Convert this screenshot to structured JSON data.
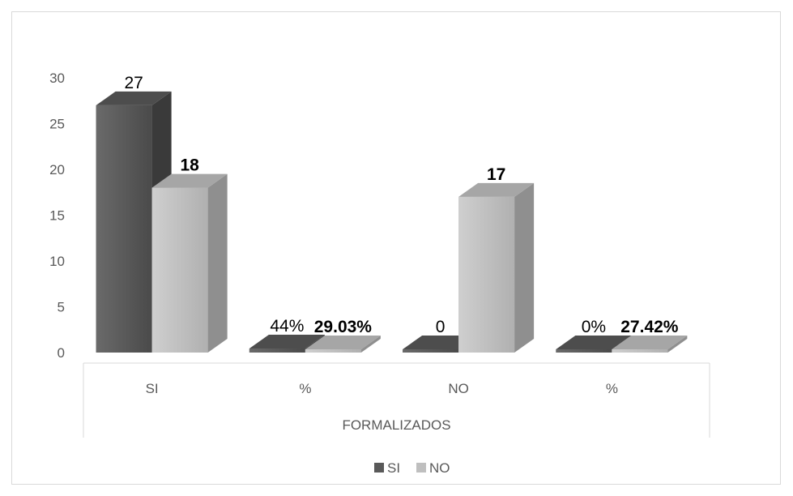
{
  "chart_data": {
    "type": "bar",
    "style": "3d-clustered-column",
    "title": "",
    "xlabel": "",
    "ylabel": "",
    "ylim": [
      0,
      30
    ],
    "yticks": [
      0,
      5,
      10,
      15,
      20,
      25,
      30
    ],
    "categories": [
      "SI",
      "%",
      "NO",
      "%"
    ],
    "group_label": "FORMALIZADOS",
    "series": [
      {
        "name": "SI",
        "color": "#595959",
        "values": [
          27,
          0.44,
          0,
          0
        ],
        "labels": [
          "27",
          "44%",
          "0",
          "0%"
        ],
        "label_bold": false
      },
      {
        "name": "NO",
        "color": "#bfbfbf",
        "values": [
          18,
          0.2903,
          17,
          0.2742
        ],
        "labels": [
          "18",
          "29.03%",
          "17",
          "27.42%"
        ],
        "label_bold": true
      }
    ],
    "grid": false,
    "legend_position": "bottom"
  }
}
